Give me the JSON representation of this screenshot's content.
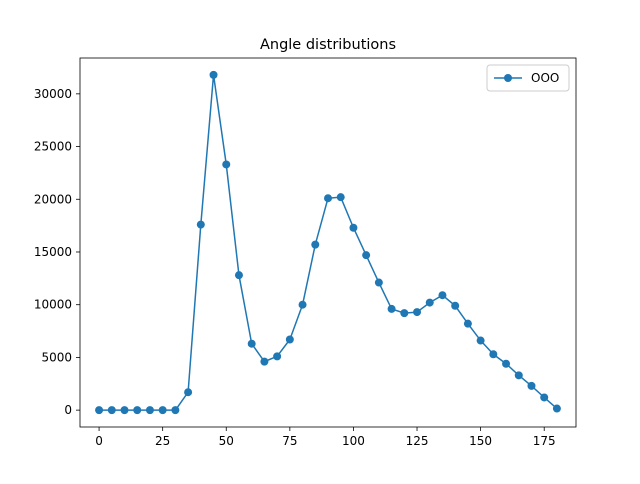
{
  "chart_data": {
    "type": "line",
    "title": "Angle distributions",
    "xlabel": "",
    "ylabel": "",
    "xlim": [
      -7.5,
      187.5
    ],
    "ylim": [
      -1600,
      33400
    ],
    "xticks": [
      0,
      25,
      50,
      75,
      100,
      125,
      150,
      175
    ],
    "yticks": [
      0,
      5000,
      10000,
      15000,
      20000,
      25000,
      30000
    ],
    "grid": false,
    "legend_position": "top-right",
    "x": [
      0,
      5,
      10,
      15,
      20,
      25,
      30,
      35,
      40,
      45,
      50,
      55,
      60,
      65,
      70,
      75,
      80,
      85,
      90,
      95,
      100,
      105,
      110,
      115,
      120,
      125,
      130,
      135,
      140,
      145,
      150,
      155,
      160,
      165,
      170,
      175,
      180
    ],
    "series": [
      {
        "name": "OOO",
        "color": "#1f77b4",
        "marker": "circle",
        "values": [
          0,
          0,
          0,
          0,
          0,
          0,
          0,
          1700,
          17600,
          31800,
          23300,
          12800,
          6300,
          4600,
          5100,
          6700,
          10000,
          15700,
          20100,
          20200,
          17300,
          14700,
          12100,
          9600,
          9200,
          9300,
          10200,
          10900,
          9900,
          8200,
          6600,
          5300,
          4400,
          3300,
          2300,
          1200,
          150
        ]
      }
    ]
  }
}
